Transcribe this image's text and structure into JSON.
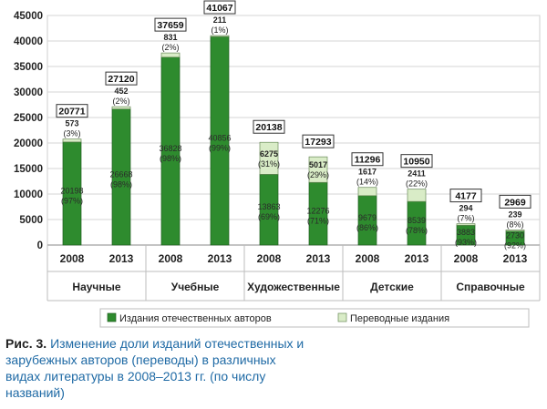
{
  "chart_data": {
    "type": "bar",
    "stacked": true,
    "ylim": [
      0,
      45000
    ],
    "yticks": [
      "0",
      "5000",
      "10000",
      "15000",
      "20000",
      "25000",
      "30000",
      "35000",
      "40000",
      "45000"
    ],
    "grid": true,
    "legend_position": "bottom",
    "groups": [
      "Научные",
      "Учебные",
      "Художественные",
      "Детские",
      "Справочные"
    ],
    "categories": [
      "2008",
      "2013",
      "2008",
      "2013",
      "2008",
      "2013",
      "2008",
      "2013",
      "2008",
      "2013"
    ],
    "totals": [
      "20771",
      "27120",
      "37659",
      "41067",
      "20138",
      "17293",
      "11296",
      "10950",
      "4177",
      "2969"
    ],
    "series": [
      {
        "name": "Издания отечественных авторов",
        "color": "#2e8b2e",
        "values": [
          20198,
          26668,
          36828,
          40856,
          13863,
          12276,
          9679,
          8539,
          3883,
          2730
        ],
        "value_labels": [
          "20198",
          "26668",
          "36828",
          "40856",
          "13863",
          "12276",
          "9679",
          "8539",
          "3883",
          "2730"
        ],
        "share_labels": [
          "(97%)",
          "(98%)",
          "(98%)",
          "(99%)",
          "(69%)",
          "(71%)",
          "(86%)",
          "(78%)",
          "(93%)",
          "(92%)"
        ]
      },
      {
        "name": "Переводные издания",
        "color": "#d9ecc7",
        "values": [
          573,
          452,
          831,
          211,
          6275,
          5017,
          1617,
          2411,
          294,
          239
        ],
        "value_labels": [
          "573",
          "452",
          "831",
          "211",
          "6275",
          "5017",
          "1617",
          "2411",
          "294",
          "239"
        ],
        "share_labels": [
          "(3%)",
          "(2%)",
          "(2%)",
          "(1%)",
          "(31%)",
          "(29%)",
          "(14%)",
          "(22%)",
          "(7%)",
          "(8%)"
        ]
      }
    ]
  },
  "caption": {
    "label": "Рис. 3.",
    "text": "Изменение доли изданий отечественных и зарубежных авторов (переводы) в различных видах литературы в 2008–2013 гг. (по числу названий)"
  }
}
